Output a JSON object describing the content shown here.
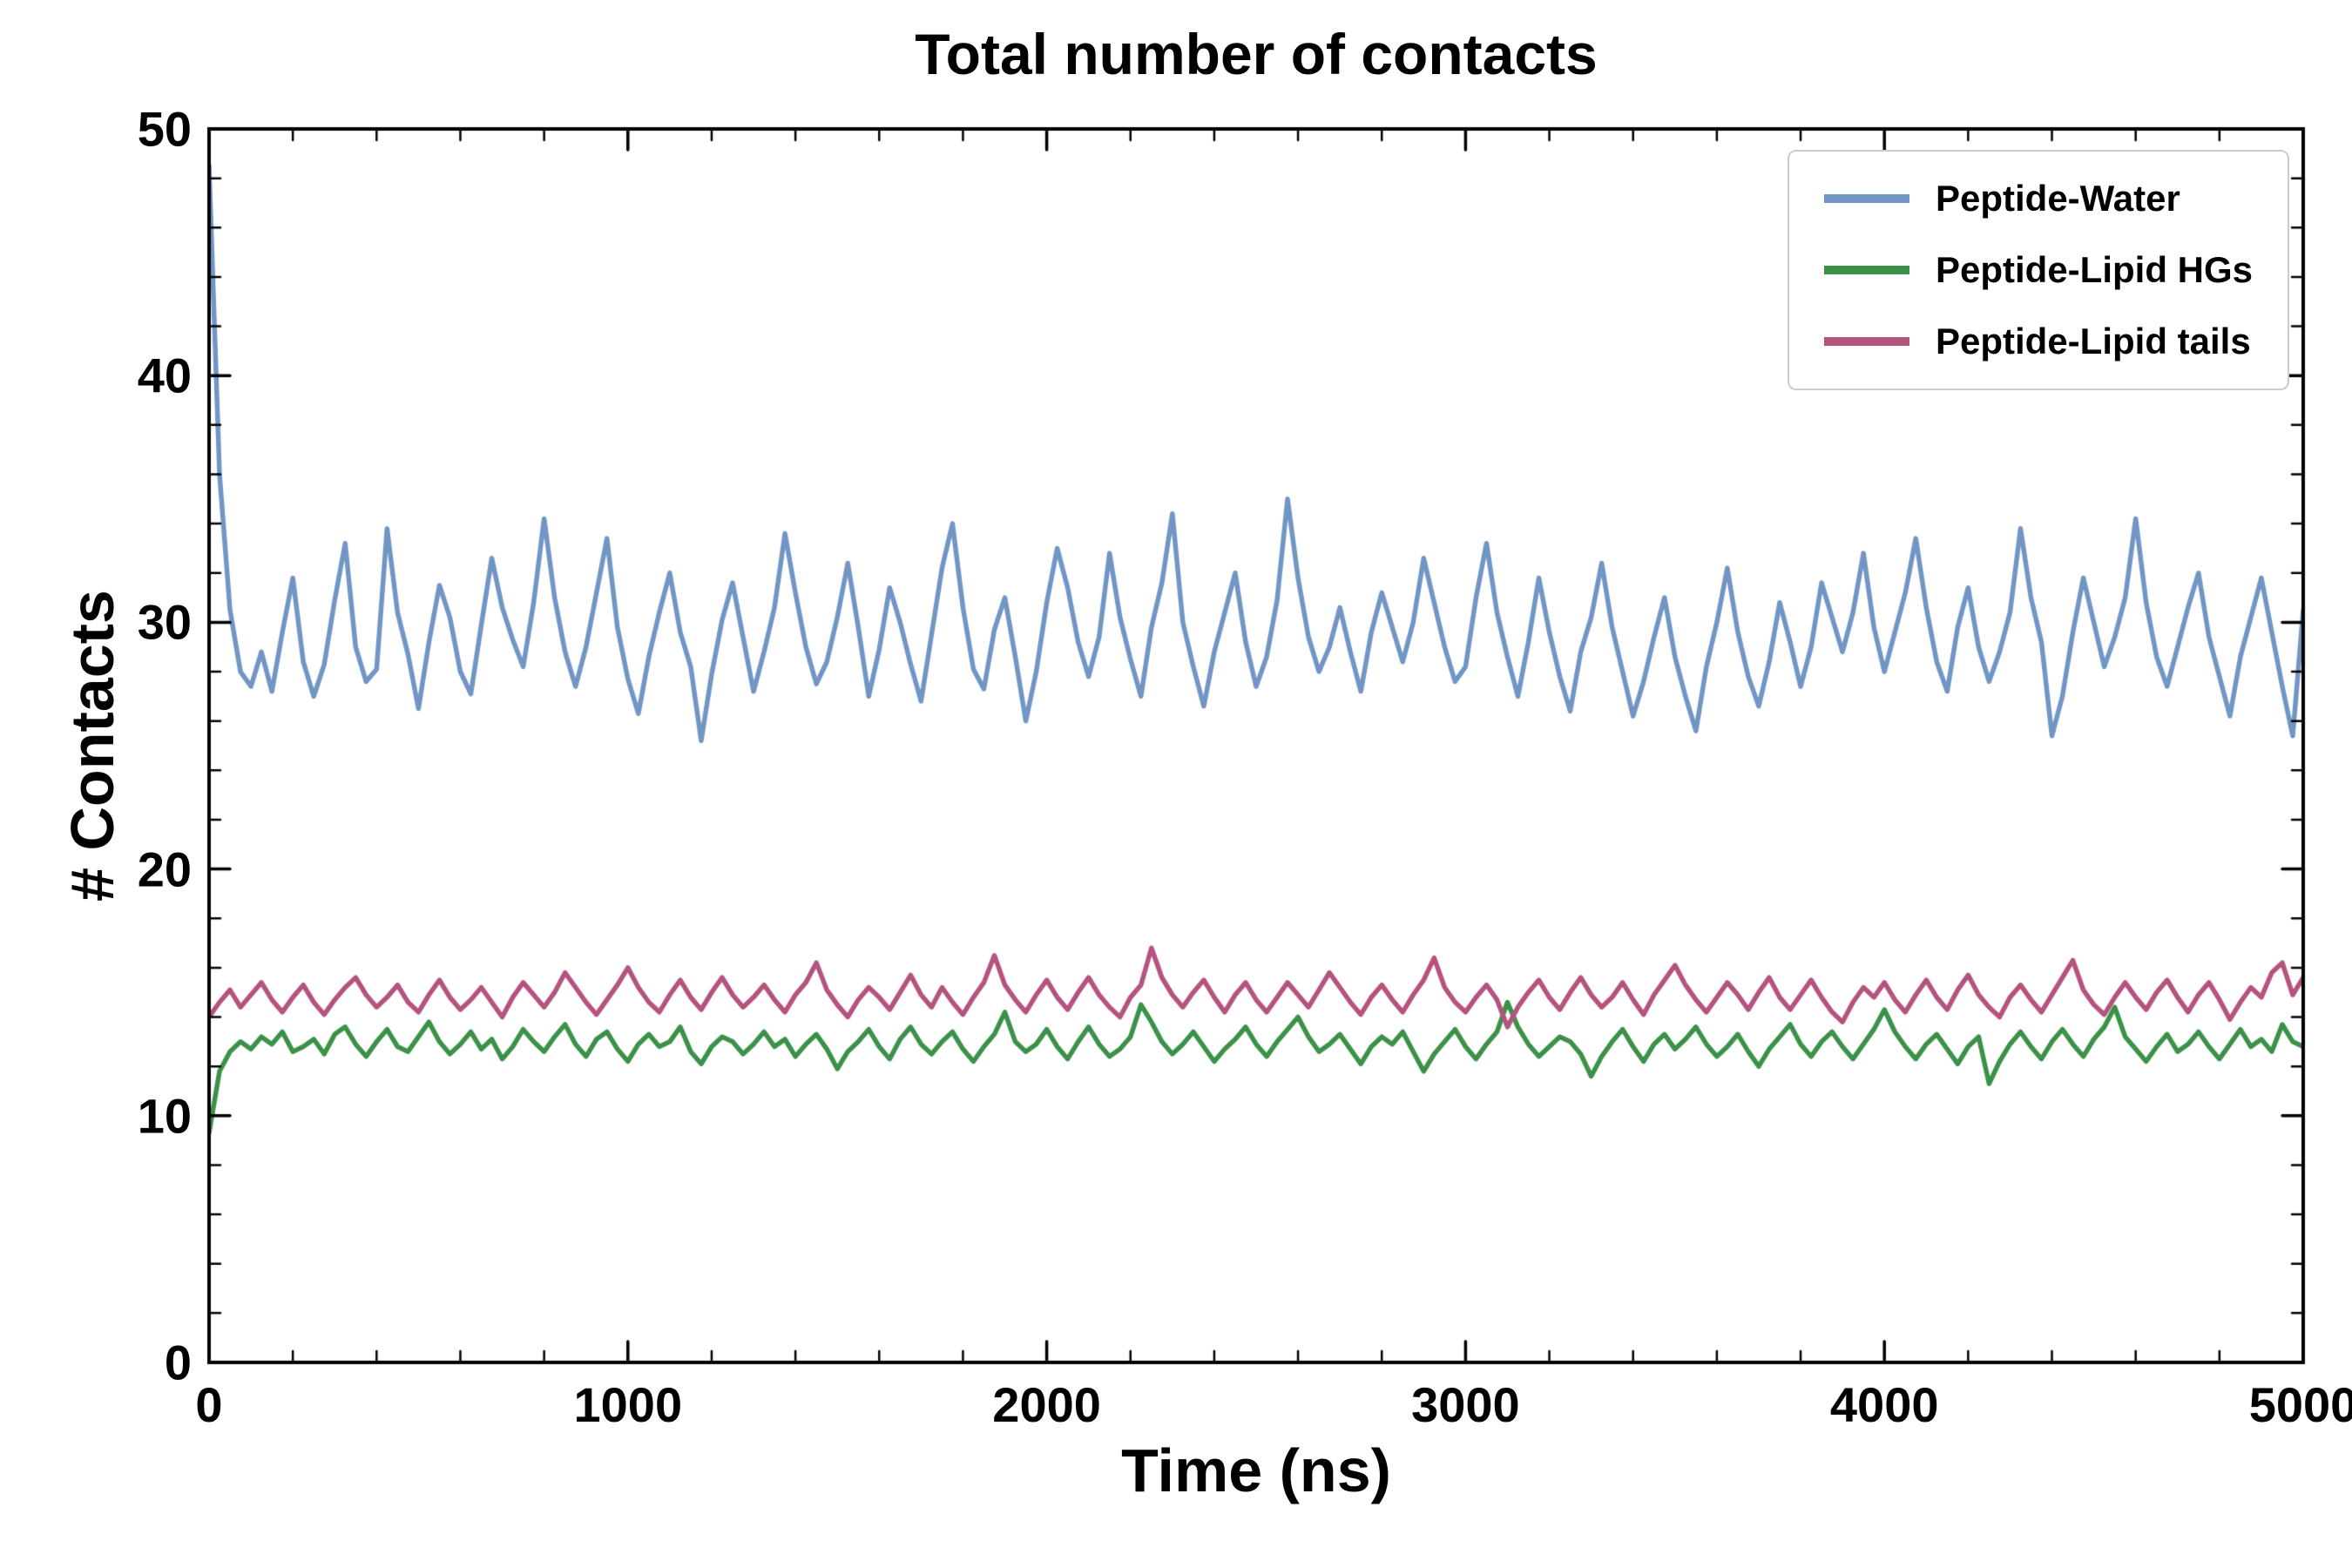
{
  "chart_data": {
    "type": "line",
    "title": "Total number of contacts",
    "xlabel": "Time (ns)",
    "ylabel": "# Contacts",
    "xlim": [
      0,
      5000
    ],
    "ylim": [
      0,
      50
    ],
    "grid": false,
    "legend_position": "upper right",
    "x_ticks": {
      "values": [
        0,
        1000,
        2000,
        3000,
        4000,
        5000
      ],
      "labels": [
        "0",
        "1000",
        "2000",
        "3000",
        "4000",
        "5000"
      ]
    },
    "y_ticks": {
      "values": [
        0,
        10,
        20,
        30,
        40,
        50
      ],
      "labels": [
        "0",
        "10",
        "20",
        "30",
        "40",
        "50"
      ]
    },
    "x_minor_step": 200,
    "y_minor_step": 2,
    "x_start": 0,
    "x_step": 25,
    "series": [
      {
        "name": "Peptide-Water",
        "color": "#7195c5",
        "values": [
          48.5,
          36.0,
          30.5,
          28.0,
          27.4,
          28.8,
          27.2,
          29.6,
          31.8,
          28.4,
          27.0,
          28.3,
          30.9,
          33.2,
          29.0,
          27.6,
          28.1,
          33.8,
          30.4,
          28.7,
          26.5,
          29.2,
          31.5,
          30.2,
          28.0,
          27.1,
          29.9,
          32.6,
          30.6,
          29.3,
          28.2,
          30.8,
          34.2,
          31.0,
          28.8,
          27.4,
          29.0,
          31.2,
          33.4,
          29.8,
          27.7,
          26.3,
          28.6,
          30.4,
          32.0,
          29.6,
          28.2,
          25.2,
          27.9,
          30.1,
          31.6,
          29.4,
          27.2,
          28.8,
          30.6,
          33.6,
          31.2,
          29.0,
          27.5,
          28.4,
          30.2,
          32.4,
          29.8,
          27.0,
          28.9,
          31.4,
          30.0,
          28.3,
          26.8,
          29.5,
          32.2,
          34.0,
          30.6,
          28.1,
          27.3,
          29.7,
          31.0,
          28.6,
          26.0,
          28.0,
          30.8,
          33.0,
          31.4,
          29.2,
          27.8,
          29.4,
          32.8,
          30.2,
          28.5,
          27.0,
          29.8,
          31.6,
          34.4,
          30.0,
          28.2,
          26.6,
          28.8,
          30.4,
          32.0,
          29.2,
          27.4,
          28.6,
          30.9,
          35.0,
          31.8,
          29.4,
          28.0,
          29.0,
          30.6,
          28.8,
          27.2,
          29.6,
          31.2,
          29.8,
          28.4,
          30.0,
          32.6,
          30.8,
          29.0,
          27.6,
          28.2,
          31.0,
          33.2,
          30.4,
          28.6,
          27.0,
          29.2,
          31.8,
          29.6,
          27.8,
          26.4,
          28.8,
          30.2,
          32.4,
          29.8,
          28.0,
          26.2,
          27.6,
          29.4,
          31.0,
          28.6,
          27.0,
          25.6,
          28.2,
          30.0,
          32.2,
          29.6,
          27.8,
          26.6,
          28.4,
          30.8,
          29.2,
          27.4,
          29.0,
          31.6,
          30.2,
          28.8,
          30.4,
          32.8,
          29.8,
          28.0,
          29.6,
          31.2,
          33.4,
          30.6,
          28.4,
          27.2,
          29.8,
          31.4,
          29.0,
          27.6,
          28.8,
          30.4,
          33.8,
          31.0,
          29.2,
          25.4,
          27.0,
          29.6,
          31.8,
          30.0,
          28.2,
          29.4,
          31.0,
          34.2,
          30.8,
          28.6,
          27.4,
          29.0,
          30.6,
          32.0,
          29.4,
          27.8,
          26.2,
          28.6,
          30.2,
          31.8,
          29.6,
          27.4,
          25.4,
          30.5
        ]
      },
      {
        "name": "Peptide-Lipid HGs",
        "color": "#3b9148",
        "values": [
          9.3,
          11.8,
          12.6,
          13.0,
          12.7,
          13.2,
          12.9,
          13.4,
          12.6,
          12.8,
          13.1,
          12.5,
          13.3,
          13.6,
          12.9,
          12.4,
          13.0,
          13.5,
          12.8,
          12.6,
          13.2,
          13.8,
          13.0,
          12.5,
          12.9,
          13.4,
          12.7,
          13.1,
          12.3,
          12.8,
          13.5,
          13.0,
          12.6,
          13.2,
          13.7,
          12.9,
          12.4,
          13.1,
          13.4,
          12.7,
          12.2,
          12.9,
          13.3,
          12.8,
          13.0,
          13.6,
          12.6,
          12.1,
          12.8,
          13.2,
          13.0,
          12.5,
          12.9,
          13.4,
          12.8,
          13.1,
          12.4,
          12.9,
          13.3,
          12.7,
          11.9,
          12.6,
          13.0,
          13.5,
          12.8,
          12.3,
          13.1,
          13.6,
          12.9,
          12.5,
          13.0,
          13.4,
          12.7,
          12.2,
          12.8,
          13.3,
          14.2,
          13.0,
          12.6,
          12.9,
          13.5,
          12.8,
          12.3,
          13.0,
          13.6,
          12.9,
          12.4,
          12.7,
          13.2,
          14.5,
          13.8,
          13.0,
          12.5,
          12.9,
          13.4,
          12.8,
          12.2,
          12.7,
          13.1,
          13.6,
          12.9,
          12.4,
          13.0,
          13.5,
          14.0,
          13.2,
          12.6,
          12.9,
          13.3,
          12.7,
          12.1,
          12.8,
          13.2,
          12.9,
          13.4,
          12.6,
          11.8,
          12.5,
          13.0,
          13.5,
          12.8,
          12.3,
          12.9,
          13.4,
          14.6,
          13.6,
          12.9,
          12.4,
          12.8,
          13.2,
          13.0,
          12.5,
          11.6,
          12.4,
          13.0,
          13.5,
          12.8,
          12.2,
          12.9,
          13.3,
          12.7,
          13.1,
          13.6,
          12.9,
          12.4,
          12.8,
          13.3,
          12.6,
          12.0,
          12.7,
          13.2,
          13.7,
          12.9,
          12.4,
          13.0,
          13.4,
          12.8,
          12.3,
          12.9,
          13.5,
          14.3,
          13.4,
          12.8,
          12.3,
          12.9,
          13.3,
          12.7,
          12.1,
          12.8,
          13.2,
          11.3,
          12.2,
          12.9,
          13.4,
          12.8,
          12.3,
          13.0,
          13.5,
          12.9,
          12.4,
          13.1,
          13.6,
          14.4,
          13.2,
          12.7,
          12.2,
          12.8,
          13.3,
          12.6,
          12.9,
          13.4,
          12.8,
          12.3,
          12.9,
          13.5,
          12.8,
          13.1,
          12.6,
          13.7,
          13.0,
          12.8
        ]
      },
      {
        "name": "Peptide-Lipid tails",
        "color": "#b5537f",
        "values": [
          14.0,
          14.6,
          15.1,
          14.4,
          14.9,
          15.4,
          14.7,
          14.2,
          14.8,
          15.3,
          14.6,
          14.1,
          14.7,
          15.2,
          15.6,
          14.9,
          14.4,
          14.8,
          15.3,
          14.6,
          14.2,
          14.9,
          15.5,
          14.8,
          14.3,
          14.7,
          15.2,
          14.6,
          14.0,
          14.8,
          15.4,
          14.9,
          14.4,
          15.0,
          15.8,
          15.2,
          14.6,
          14.1,
          14.7,
          15.3,
          16.0,
          15.2,
          14.6,
          14.2,
          14.9,
          15.5,
          14.8,
          14.3,
          15.0,
          15.6,
          14.9,
          14.4,
          14.8,
          15.3,
          14.7,
          14.2,
          14.9,
          15.4,
          16.2,
          15.1,
          14.5,
          14.0,
          14.7,
          15.2,
          14.8,
          14.3,
          15.0,
          15.7,
          14.9,
          14.4,
          15.2,
          14.6,
          14.1,
          14.8,
          15.4,
          16.5,
          15.3,
          14.7,
          14.2,
          14.9,
          15.5,
          14.8,
          14.3,
          15.0,
          15.6,
          14.9,
          14.4,
          14.0,
          14.8,
          15.3,
          16.8,
          15.6,
          14.9,
          14.4,
          15.0,
          15.5,
          14.8,
          14.2,
          14.9,
          15.4,
          14.7,
          14.2,
          14.8,
          15.4,
          14.9,
          14.4,
          15.1,
          15.8,
          15.2,
          14.6,
          14.1,
          14.8,
          15.3,
          14.7,
          14.2,
          14.9,
          15.5,
          16.4,
          15.2,
          14.6,
          14.2,
          14.8,
          15.3,
          14.7,
          13.6,
          14.4,
          15.0,
          15.5,
          14.8,
          14.3,
          15.0,
          15.6,
          14.9,
          14.4,
          14.8,
          15.4,
          14.7,
          14.1,
          14.9,
          15.5,
          16.1,
          15.3,
          14.7,
          14.2,
          14.8,
          15.4,
          14.9,
          14.3,
          15.0,
          15.6,
          14.8,
          14.3,
          14.9,
          15.5,
          14.8,
          14.2,
          13.8,
          14.6,
          15.2,
          14.8,
          15.4,
          14.7,
          14.2,
          14.9,
          15.5,
          14.8,
          14.3,
          15.1,
          15.7,
          14.9,
          14.4,
          14.0,
          14.8,
          15.3,
          14.7,
          14.2,
          14.9,
          15.6,
          16.3,
          15.1,
          14.5,
          14.1,
          14.8,
          15.4,
          14.8,
          14.3,
          15.0,
          15.5,
          14.8,
          14.2,
          14.9,
          15.4,
          14.7,
          13.9,
          14.6,
          15.2,
          14.8,
          15.8,
          16.2,
          14.9,
          15.6
        ]
      }
    ]
  }
}
